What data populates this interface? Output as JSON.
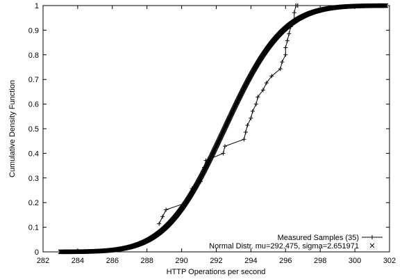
{
  "chart_data": {
    "type": "line",
    "xlabel": "HTTP Operations per second",
    "ylabel": "Cumulative Density Function",
    "xlim": [
      282,
      302
    ],
    "ylim": [
      0,
      1
    ],
    "x_ticks": [
      "282",
      "284",
      "286",
      "288",
      "290",
      "292",
      "294",
      "296",
      "298",
      "300",
      "302"
    ],
    "y_ticks": [
      "0",
      "0.1",
      "0.2",
      "0.3",
      "0.4",
      "0.5",
      "0.6",
      "0.7",
      "0.8",
      "0.9",
      "1"
    ],
    "legend_position": "bottom-right",
    "series": [
      {
        "name": "Measured Samples (35)",
        "style": "line-points",
        "marker": "+",
        "x": [
          288.7,
          288.9,
          289.1,
          290.3,
          290.5,
          290.6,
          291.1,
          291.2,
          291.3,
          291.4,
          292.4,
          292.5,
          293.6,
          293.7,
          293.8,
          294.0,
          294.1,
          294.3,
          294.4,
          294.7,
          294.9,
          295.2,
          295.7,
          295.8,
          296.0,
          296.0,
          296.1,
          296.2,
          296.3,
          296.5,
          296.5,
          296.6,
          296.6,
          296.7,
          296.7
        ],
        "y": [
          0.114,
          0.143,
          0.171,
          0.2,
          0.229,
          0.257,
          0.286,
          0.314,
          0.343,
          0.371,
          0.4,
          0.429,
          0.457,
          0.486,
          0.514,
          0.543,
          0.571,
          0.6,
          0.629,
          0.657,
          0.686,
          0.714,
          0.743,
          0.771,
          0.8,
          0.829,
          0.857,
          0.886,
          0.914,
          0.943,
          0.971,
          1.0,
          1.0,
          1.0,
          1.0
        ]
      },
      {
        "name": "Normal Distr. mu=292.475, sigma=2.651971",
        "style": "points",
        "marker": "x",
        "mu": 292.475,
        "sigma": 2.651971,
        "x_range": [
          283.0,
          301.8
        ]
      }
    ]
  }
}
